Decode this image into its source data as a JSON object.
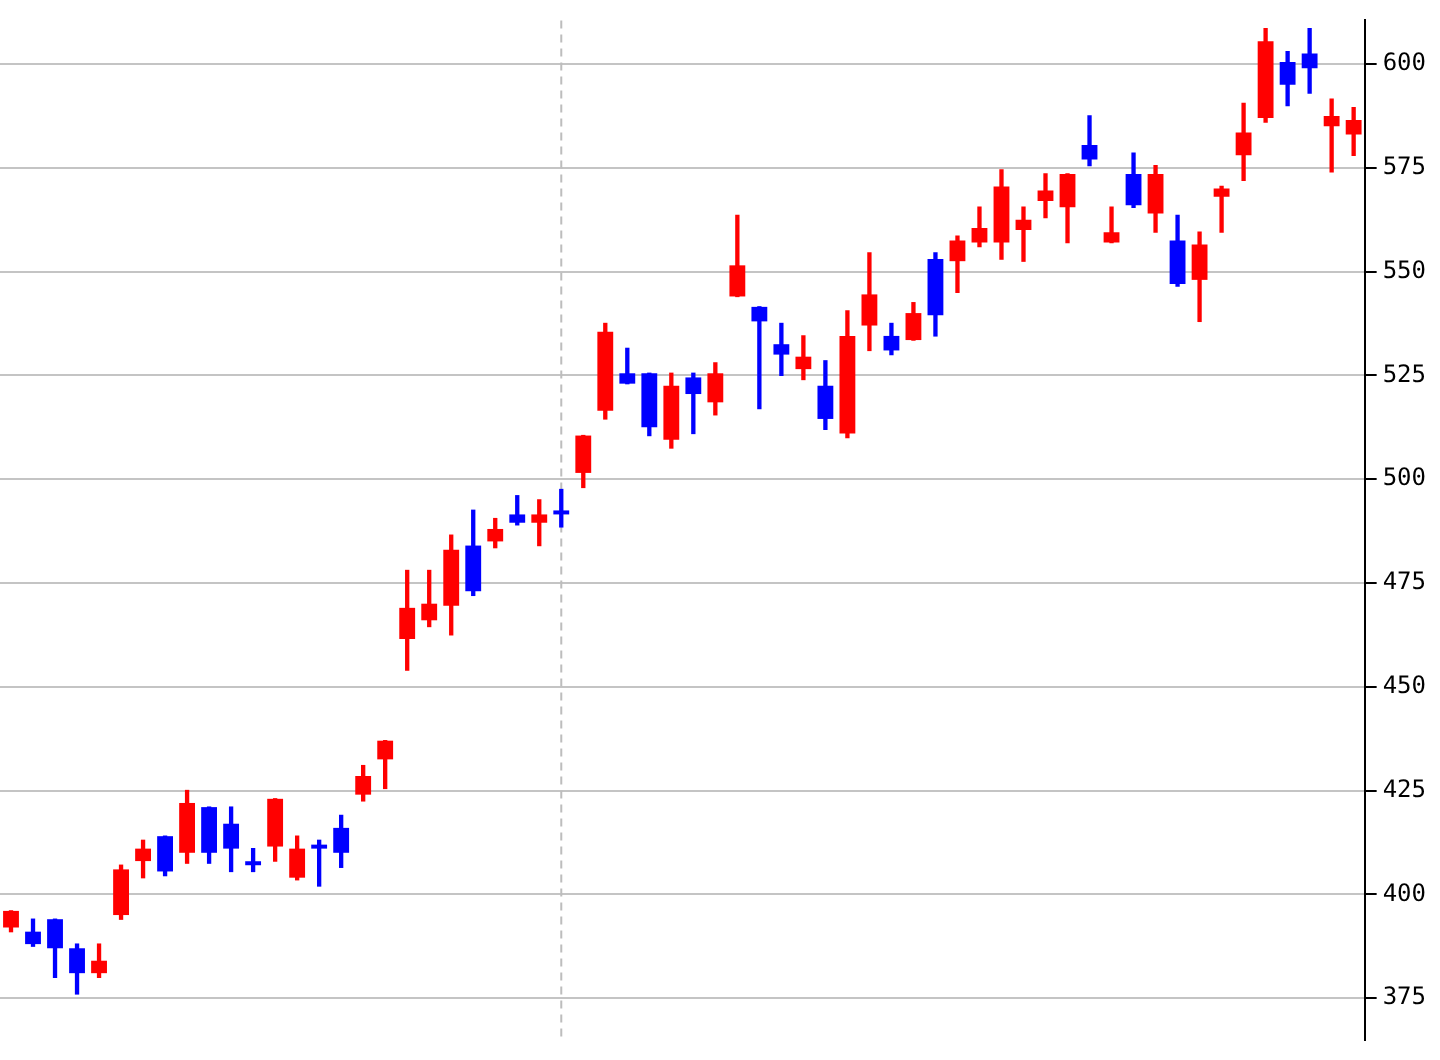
{
  "chart_data": {
    "type": "candlestick",
    "categories": [
      null,
      null,
      null,
      null,
      null,
      null,
      null,
      null,
      null,
      null,
      null,
      null,
      null,
      null,
      null,
      null,
      null,
      null,
      null,
      null,
      null,
      null,
      null,
      null,
      null,
      null,
      null,
      null,
      null,
      null,
      null,
      null,
      null,
      null,
      null,
      null,
      null,
      null,
      null,
      null,
      null,
      null,
      null,
      null,
      null,
      null,
      null,
      null,
      null,
      null,
      null,
      null,
      null,
      null,
      null,
      null,
      null,
      null,
      null,
      null,
      null,
      null
    ],
    "ohlc": [
      [
        392,
        396,
        391,
        396
      ],
      [
        391,
        394,
        387.5,
        388
      ],
      [
        394,
        394,
        380,
        387
      ],
      [
        387,
        388,
        376,
        381
      ],
      [
        381,
        388,
        380,
        384
      ],
      [
        395,
        407,
        394,
        406
      ],
      [
        408,
        413,
        404,
        411
      ],
      [
        414,
        414,
        404.5,
        405.5
      ],
      [
        410,
        425,
        407.5,
        422
      ],
      [
        421,
        421,
        407.5,
        410
      ],
      [
        417,
        421,
        405.5,
        411
      ],
      [
        407,
        411,
        405.5,
        407
      ],
      [
        411.5,
        423,
        408,
        423
      ],
      [
        404,
        414,
        403.5,
        411
      ],
      [
        411,
        413,
        402,
        411
      ],
      [
        416,
        419,
        406.5,
        410
      ],
      [
        424,
        431,
        422.5,
        428.5
      ],
      [
        432.5,
        437,
        425.5,
        437
      ],
      [
        461.5,
        478,
        454,
        469
      ],
      [
        466,
        478,
        464.5,
        470
      ],
      [
        469.5,
        486.5,
        462.5,
        483
      ],
      [
        484,
        492.5,
        472,
        473
      ],
      [
        485,
        490.5,
        483.5,
        488
      ],
      [
        491.5,
        496,
        489,
        489.5
      ],
      [
        489.5,
        495,
        484,
        491.5
      ],
      [
        492,
        497.5,
        488.5,
        491.5
      ],
      [
        501.5,
        510.5,
        498,
        510.5
      ],
      [
        516.5,
        537.5,
        514.5,
        535.5
      ],
      [
        525.5,
        531.5,
        523,
        523
      ],
      [
        525.5,
        525.5,
        510.5,
        512.5
      ],
      [
        509.5,
        525.5,
        507.5,
        522.5
      ],
      [
        524.5,
        525.5,
        511,
        520.5
      ],
      [
        518.5,
        528,
        515.5,
        525.5
      ],
      [
        544,
        563.5,
        544,
        551.5
      ],
      [
        541.5,
        541.5,
        517,
        538
      ],
      [
        532.5,
        537.5,
        525,
        530
      ],
      [
        526.5,
        534.5,
        524,
        529.5
      ],
      [
        522.5,
        528.5,
        512,
        514.5
      ],
      [
        511,
        540.5,
        510,
        534.5
      ],
      [
        537,
        554.5,
        531,
        544.5
      ],
      [
        534.5,
        537.5,
        530,
        531
      ],
      [
        533.5,
        542.5,
        533.5,
        540
      ],
      [
        553,
        554.5,
        534.5,
        539.5
      ],
      [
        552.5,
        558.5,
        545,
        557.5
      ],
      [
        557,
        565.5,
        556,
        560.5
      ],
      [
        557,
        574.5,
        553,
        570.5
      ],
      [
        560,
        565.5,
        552.5,
        562.5
      ],
      [
        567,
        573.5,
        563,
        569.5
      ],
      [
        565.5,
        573.5,
        557,
        573.5
      ],
      [
        580.5,
        587.5,
        575.5,
        577
      ],
      [
        557,
        565.5,
        557,
        559.5
      ],
      [
        573.5,
        578.5,
        565.5,
        566
      ],
      [
        564,
        575.5,
        559.5,
        573.5
      ],
      [
        557.5,
        563.5,
        546.5,
        547
      ],
      [
        548,
        559.5,
        538,
        556.5
      ],
      [
        568,
        570.5,
        559.5,
        570
      ],
      [
        578,
        590.5,
        572,
        583.5
      ],
      [
        587,
        608.5,
        586,
        605.5
      ],
      [
        600.5,
        603,
        590,
        595
      ],
      [
        602.5,
        608.5,
        593,
        599
      ],
      [
        585,
        591.5,
        574,
        587.5
      ],
      [
        583,
        589.5,
        578,
        586.5
      ]
    ],
    "colors": [
      "#ff0000",
      "#0000ff",
      "#0000ff",
      "#0000ff",
      "#ff0000",
      "#ff0000",
      "#ff0000",
      "#0000ff",
      "#ff0000",
      "#0000ff",
      "#0000ff",
      "#0000ff",
      "#ff0000",
      "#ff0000",
      "#0000ff",
      "#0000ff",
      "#ff0000",
      "#ff0000",
      "#ff0000",
      "#ff0000",
      "#ff0000",
      "#0000ff",
      "#ff0000",
      "#0000ff",
      "#ff0000",
      "#0000ff",
      "#ff0000",
      "#ff0000",
      "#0000ff",
      "#0000ff",
      "#ff0000",
      "#0000ff",
      "#ff0000",
      "#ff0000",
      "#0000ff",
      "#0000ff",
      "#ff0000",
      "#0000ff",
      "#ff0000",
      "#ff0000",
      "#0000ff",
      "#ff0000",
      "#0000ff",
      "#ff0000",
      "#ff0000",
      "#ff0000",
      "#ff0000",
      "#ff0000",
      "#ff0000",
      "#0000ff",
      "#ff0000",
      "#0000ff",
      "#ff0000",
      "#0000ff",
      "#ff0000",
      "#ff0000",
      "#ff0000",
      "#ff0000",
      "#0000ff",
      "#0000ff",
      "#ff0000",
      "#ff0000"
    ],
    "ylim": [
      365,
      610.5
    ],
    "yticks": [
      375,
      400,
      425,
      450,
      475,
      500,
      525,
      550,
      575,
      600
    ],
    "grid": "y",
    "tick_labels": "y",
    "legend": false
  }
}
